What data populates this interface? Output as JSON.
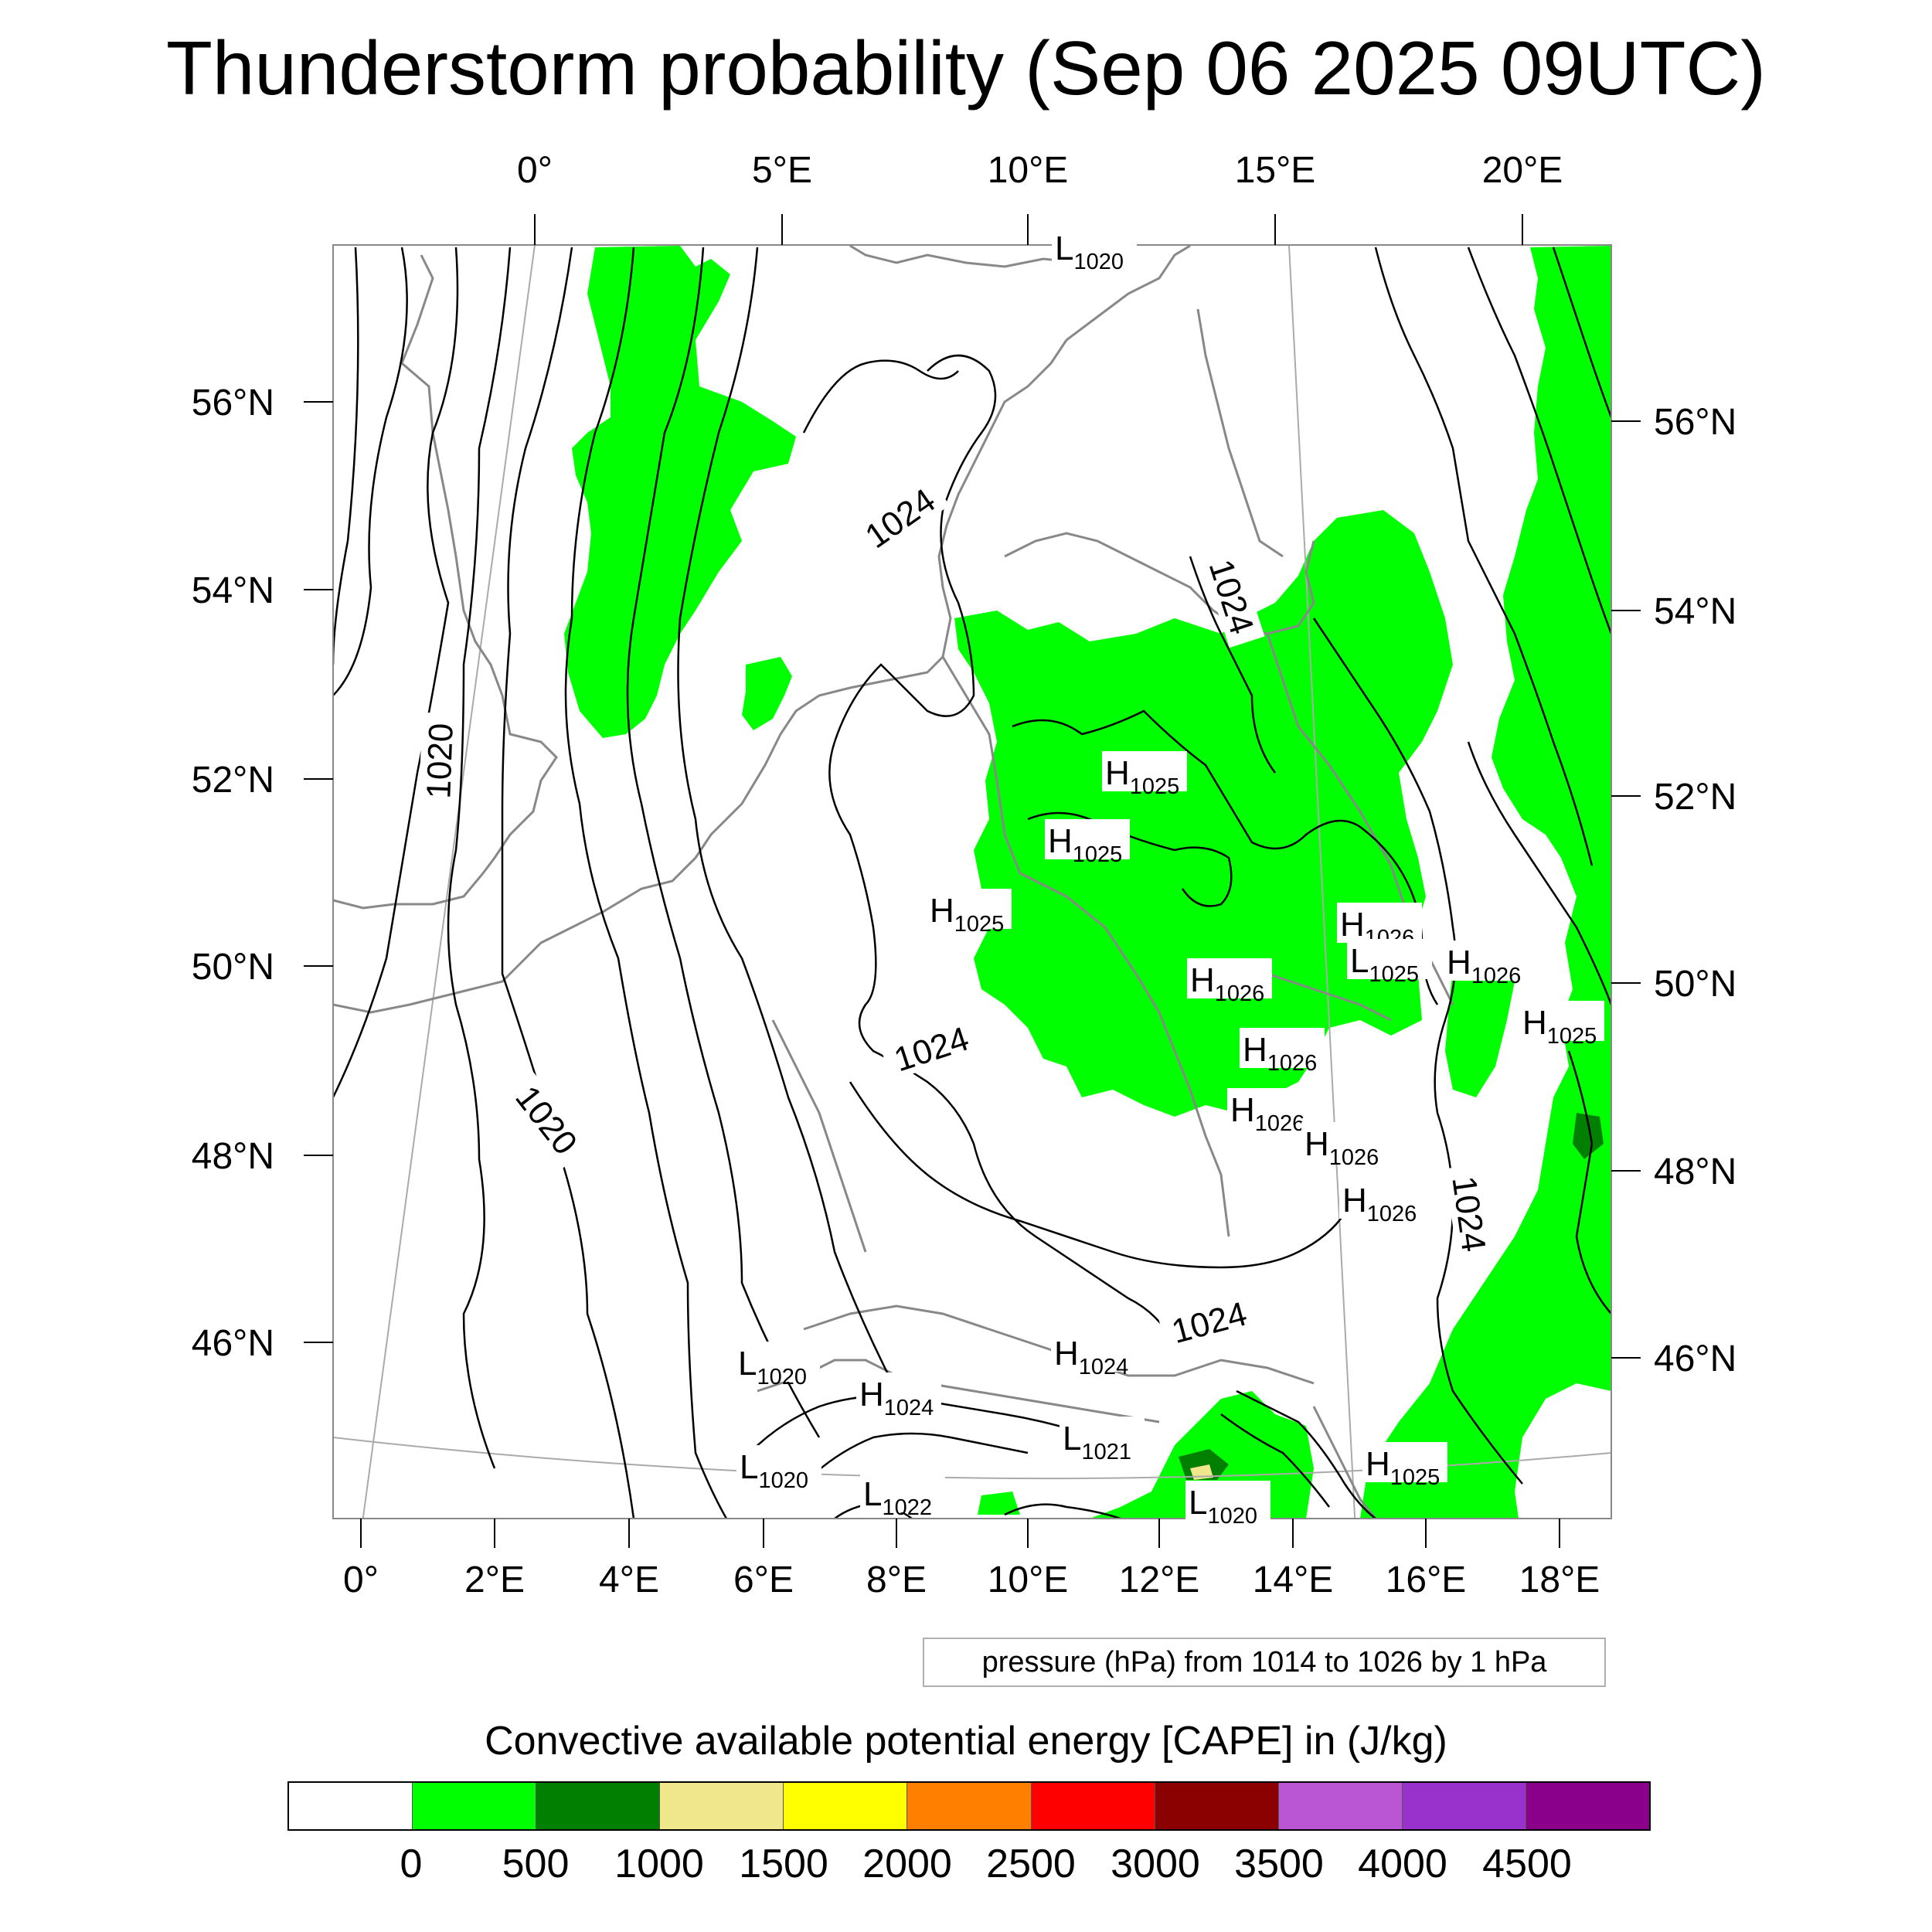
{
  "title": "Thunderstorm probability (Sep 06 2025 09UTC)",
  "map": {
    "top_lon_labels": [
      "0°",
      "5°E",
      "10°E",
      "15°E",
      "20°E"
    ],
    "bottom_lon_labels": [
      "0°",
      "2°E",
      "4°E",
      "6°E",
      "8°E",
      "10°E",
      "12°E",
      "14°E",
      "16°E",
      "18°E"
    ],
    "left_lat_labels": [
      "56°N",
      "54°N",
      "52°N",
      "50°N",
      "48°N",
      "46°N"
    ],
    "right_lat_labels": [
      "56°N",
      "54°N",
      "52°N",
      "50°N",
      "48°N",
      "46°N"
    ],
    "isobar_labels": [
      "1024",
      "1020",
      "1020",
      "1024",
      "1024",
      "1024",
      "1024"
    ],
    "pressure_centers": [
      {
        "kind": "L",
        "value": "1020"
      },
      {
        "kind": "H",
        "value": "1025"
      },
      {
        "kind": "H",
        "value": "1025"
      },
      {
        "kind": "H",
        "value": "1025"
      },
      {
        "kind": "H",
        "value": "1026"
      },
      {
        "kind": "L",
        "value": "1025"
      },
      {
        "kind": "H",
        "value": "1026"
      },
      {
        "kind": "H",
        "value": "1026"
      },
      {
        "kind": "H",
        "value": "1025"
      },
      {
        "kind": "H",
        "value": "1026"
      },
      {
        "kind": "H",
        "value": "1026"
      },
      {
        "kind": "H",
        "value": "1026"
      },
      {
        "kind": "H",
        "value": "1026"
      },
      {
        "kind": "L",
        "value": "1020"
      },
      {
        "kind": "H",
        "value": "1024"
      },
      {
        "kind": "H",
        "value": "1024"
      },
      {
        "kind": "L",
        "value": "1021"
      },
      {
        "kind": "L",
        "value": "1020"
      },
      {
        "kind": "L",
        "value": "1022"
      },
      {
        "kind": "L",
        "value": "1020"
      },
      {
        "kind": "H",
        "value": "1025"
      }
    ],
    "colors": {
      "cape_0_500": "#00ff00",
      "cape_500_1000": "#007f00",
      "cape_1000_1500": "#f0e68c",
      "coastline": "#888888",
      "isobar": "#000000"
    }
  },
  "pressure_info": "pressure (hPa) from 1014 to 1026 by 1 hPa",
  "legend": {
    "title": "Convective available potential energy [CAPE] in (J/kg)",
    "colors": [
      "#ffffff",
      "#00ff00",
      "#007f00",
      "#f0e68c",
      "#ffff00",
      "#ff8000",
      "#ff0000",
      "#8b0000",
      "#ba55d3",
      "#9932cc",
      "#8b008b"
    ],
    "labels": [
      "0",
      "500",
      "1000",
      "1500",
      "2000",
      "2500",
      "3000",
      "3500",
      "4000",
      "4500"
    ]
  }
}
